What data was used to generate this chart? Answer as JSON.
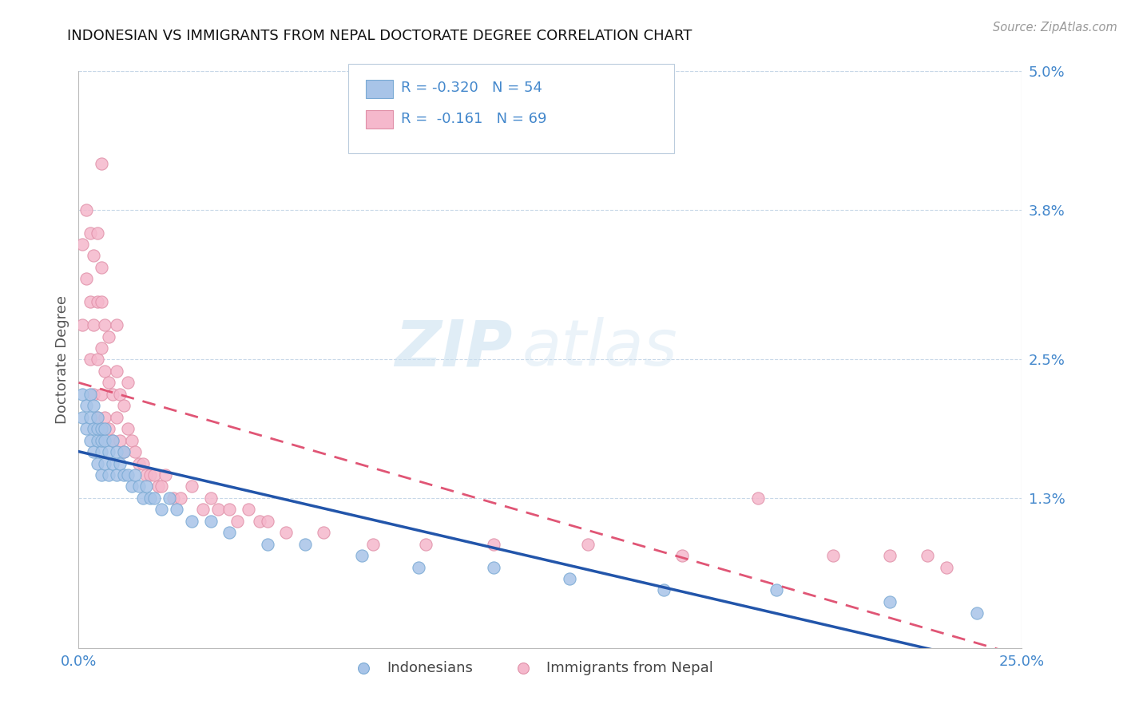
{
  "title": "INDONESIAN VS IMMIGRANTS FROM NEPAL DOCTORATE DEGREE CORRELATION CHART",
  "source": "Source: ZipAtlas.com",
  "ylabel": "Doctorate Degree",
  "xlim": [
    0.0,
    0.25
  ],
  "ylim": [
    0.0,
    0.05
  ],
  "ytick_vals": [
    0.013,
    0.025,
    0.038,
    0.05
  ],
  "ytick_labels": [
    "1.3%",
    "2.5%",
    "3.8%",
    "5.0%"
  ],
  "xtick_vals": [
    0.0,
    0.25
  ],
  "xtick_labels": [
    "0.0%",
    "25.0%"
  ],
  "series1_name": "Indonesians",
  "series1_color": "#a8c4e8",
  "series1_edge_color": "#7aaad4",
  "series1_line_color": "#2255aa",
  "series1_R": -0.32,
  "series1_N": 54,
  "series2_name": "Immigrants from Nepal",
  "series2_color": "#f5b8cc",
  "series2_edge_color": "#e090a8",
  "series2_line_color": "#e05575",
  "series2_R": -0.161,
  "series2_N": 69,
  "background_color": "#ffffff",
  "grid_color": "#c8d8e8",
  "title_color": "#111111",
  "axis_label_color": "#4488cc",
  "watermark_color": "#d8eaf8",
  "indonesians_x": [
    0.001,
    0.001,
    0.002,
    0.002,
    0.003,
    0.003,
    0.003,
    0.004,
    0.004,
    0.004,
    0.005,
    0.005,
    0.005,
    0.005,
    0.006,
    0.006,
    0.006,
    0.006,
    0.007,
    0.007,
    0.007,
    0.008,
    0.008,
    0.009,
    0.009,
    0.01,
    0.01,
    0.011,
    0.012,
    0.012,
    0.013,
    0.014,
    0.015,
    0.016,
    0.017,
    0.018,
    0.019,
    0.02,
    0.022,
    0.024,
    0.026,
    0.03,
    0.035,
    0.04,
    0.05,
    0.06,
    0.075,
    0.09,
    0.11,
    0.13,
    0.155,
    0.185,
    0.215,
    0.238
  ],
  "indonesians_y": [
    0.02,
    0.022,
    0.019,
    0.021,
    0.018,
    0.02,
    0.022,
    0.017,
    0.019,
    0.021,
    0.016,
    0.018,
    0.019,
    0.02,
    0.015,
    0.017,
    0.018,
    0.019,
    0.016,
    0.018,
    0.019,
    0.015,
    0.017,
    0.016,
    0.018,
    0.015,
    0.017,
    0.016,
    0.015,
    0.017,
    0.015,
    0.014,
    0.015,
    0.014,
    0.013,
    0.014,
    0.013,
    0.013,
    0.012,
    0.013,
    0.012,
    0.011,
    0.011,
    0.01,
    0.009,
    0.009,
    0.008,
    0.007,
    0.007,
    0.006,
    0.005,
    0.005,
    0.004,
    0.003
  ],
  "nepal_x": [
    0.001,
    0.001,
    0.002,
    0.002,
    0.003,
    0.003,
    0.003,
    0.004,
    0.004,
    0.004,
    0.005,
    0.005,
    0.005,
    0.005,
    0.006,
    0.006,
    0.006,
    0.006,
    0.006,
    0.007,
    0.007,
    0.007,
    0.008,
    0.008,
    0.008,
    0.009,
    0.009,
    0.01,
    0.01,
    0.01,
    0.011,
    0.011,
    0.012,
    0.012,
    0.013,
    0.013,
    0.014,
    0.015,
    0.016,
    0.017,
    0.018,
    0.019,
    0.02,
    0.021,
    0.022,
    0.023,
    0.025,
    0.027,
    0.03,
    0.033,
    0.037,
    0.042,
    0.048,
    0.055,
    0.065,
    0.078,
    0.092,
    0.11,
    0.135,
    0.16,
    0.18,
    0.2,
    0.215,
    0.225,
    0.23,
    0.035,
    0.04,
    0.045,
    0.05
  ],
  "nepal_y": [
    0.028,
    0.035,
    0.032,
    0.038,
    0.025,
    0.03,
    0.036,
    0.022,
    0.028,
    0.034,
    0.02,
    0.025,
    0.03,
    0.036,
    0.022,
    0.026,
    0.03,
    0.033,
    0.042,
    0.02,
    0.024,
    0.028,
    0.019,
    0.023,
    0.027,
    0.018,
    0.022,
    0.02,
    0.024,
    0.028,
    0.018,
    0.022,
    0.017,
    0.021,
    0.019,
    0.023,
    0.018,
    0.017,
    0.016,
    0.016,
    0.015,
    0.015,
    0.015,
    0.014,
    0.014,
    0.015,
    0.013,
    0.013,
    0.014,
    0.012,
    0.012,
    0.011,
    0.011,
    0.01,
    0.01,
    0.009,
    0.009,
    0.009,
    0.009,
    0.008,
    0.013,
    0.008,
    0.008,
    0.008,
    0.007,
    0.013,
    0.012,
    0.012,
    0.011
  ]
}
